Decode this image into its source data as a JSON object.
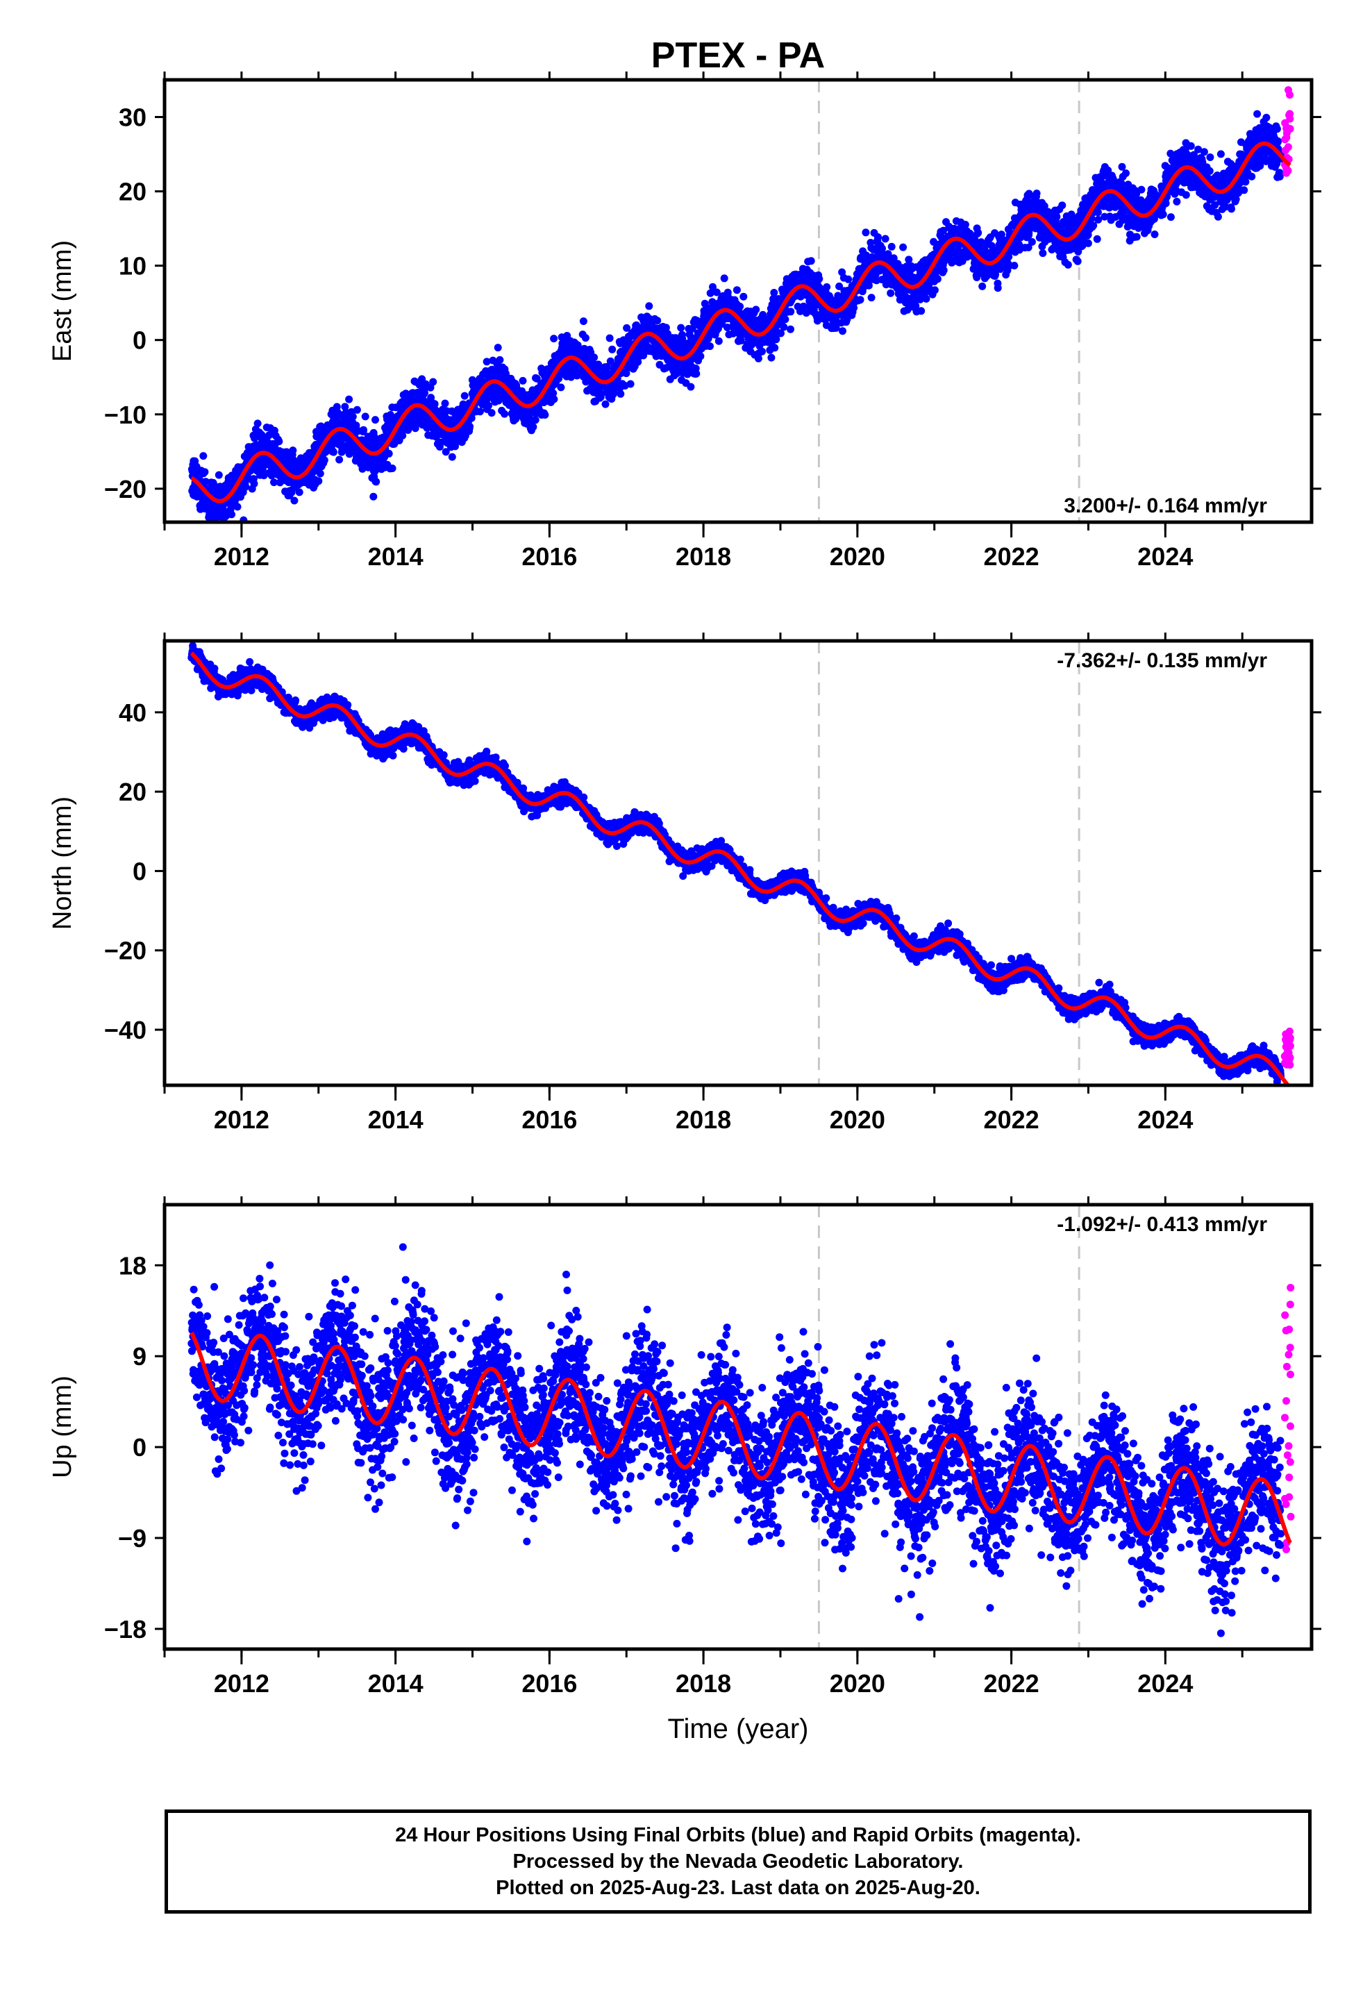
{
  "chart_data": [
    {
      "type": "scatter",
      "panel": "east",
      "title": "PTEX - PA",
      "ylabel": "East (mm)",
      "xlabel": "",
      "xlim": [
        2011.0,
        2025.9
      ],
      "ylim": [
        -24.5,
        35
      ],
      "yticks": [
        -20,
        -10,
        0,
        10,
        20,
        30
      ],
      "xticks": [
        2012,
        2014,
        2016,
        2018,
        2020,
        2022,
        2024
      ],
      "rate_label": "3.200+/- 0.164 mm/yr",
      "rate_position": "bottom-right",
      "trend": {
        "slope": 3.2,
        "start_x": 2011.35,
        "start_y": -20.5,
        "annual_amplitude": 2.4,
        "scatter_sd": 1.5
      },
      "breaks": [
        2019.5,
        2022.88
      ],
      "grid": false,
      "series": [
        {
          "values_description": "daily final-orbit positions",
          "color": "#0000ff",
          "x_range": [
            2011.35,
            2025.5
          ]
        },
        {
          "values_description": "rapid-orbit positions",
          "color": "#ff00ff",
          "x_range": [
            2025.55,
            2025.63
          ],
          "y_range": [
            22,
            34
          ]
        },
        {
          "values_description": "model fit",
          "color": "#ff0000"
        }
      ]
    },
    {
      "type": "scatter",
      "panel": "north",
      "ylabel": "North (mm)",
      "xlabel": "",
      "xlim": [
        2011.0,
        2025.9
      ],
      "ylim": [
        -54,
        58
      ],
      "yticks": [
        -40,
        -20,
        0,
        20,
        40
      ],
      "xticks": [
        2012,
        2014,
        2016,
        2018,
        2020,
        2022,
        2024
      ],
      "rate_label": "-7.362+/- 0.135 mm/yr",
      "rate_position": "top-right",
      "trend": {
        "slope": -7.362,
        "start_x": 2011.35,
        "start_y": 52.5,
        "annual_amplitude": 3.0,
        "scatter_sd": 1.2
      },
      "breaks": [
        2019.5,
        2022.88
      ],
      "grid": false,
      "series": [
        {
          "values_description": "daily final-orbit positions",
          "color": "#0000ff",
          "x_range": [
            2011.35,
            2025.5
          ]
        },
        {
          "values_description": "rapid-orbit positions",
          "color": "#ff00ff",
          "x_range": [
            2025.55,
            2025.63
          ],
          "y_range": [
            -49,
            -40
          ]
        },
        {
          "values_description": "model fit",
          "color": "#ff0000"
        }
      ]
    },
    {
      "type": "scatter",
      "panel": "up",
      "ylabel": "Up (mm)",
      "xlabel": "Time (year)",
      "xlim": [
        2011.0,
        2025.9
      ],
      "ylim": [
        -20,
        24
      ],
      "yticks": [
        -18,
        -9,
        0,
        9,
        18
      ],
      "xticks": [
        2012,
        2014,
        2016,
        2018,
        2020,
        2022,
        2024
      ],
      "rate_label": "-1.092+/- 0.413 mm/yr",
      "rate_position": "top-right",
      "trend": {
        "slope": -1.092,
        "start_x": 2011.35,
        "start_y": 8.5,
        "annual_amplitude": 3.5,
        "scatter_sd": 3.2
      },
      "breaks": [
        2019.5,
        2022.88
      ],
      "grid": false,
      "series": [
        {
          "values_description": "daily final-orbit positions",
          "color": "#0000ff",
          "x_range": [
            2011.35,
            2025.5
          ]
        },
        {
          "values_description": "rapid-orbit positions",
          "color": "#ff00ff",
          "x_range": [
            2025.55,
            2025.63
          ],
          "y_range": [
            -11,
            16
          ]
        },
        {
          "values_description": "model fit",
          "color": "#ff0000"
        }
      ]
    }
  ],
  "footer": {
    "line1": "24 Hour Positions Using Final Orbits (blue) and Rapid Orbits (magenta).",
    "line2": "Processed by the Nevada Geodetic Laboratory.",
    "line3": "Plotted on 2025-Aug-23. Last data on 2025-Aug-20."
  }
}
